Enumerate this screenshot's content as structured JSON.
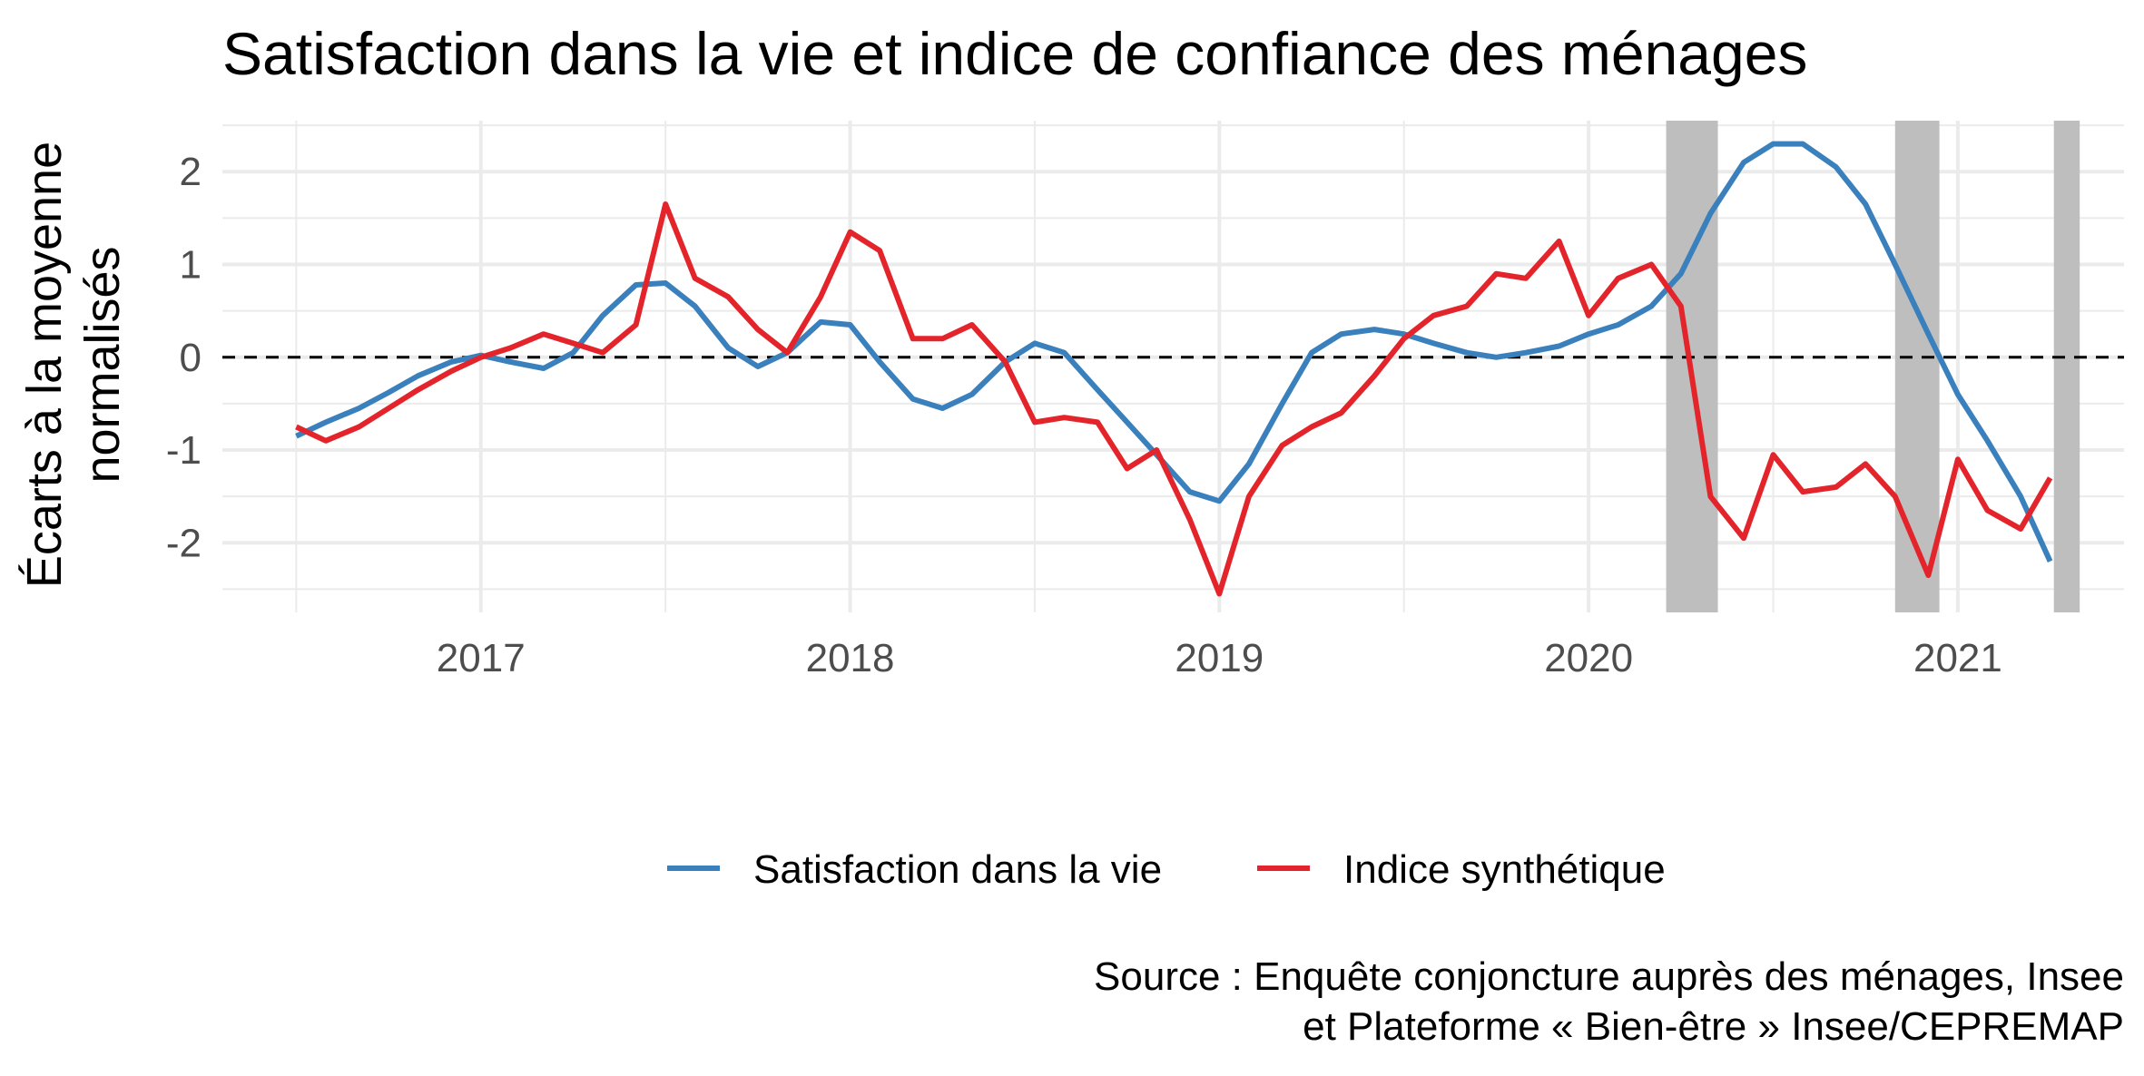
{
  "chart_data": {
    "type": "line",
    "title": "Satisfaction dans la vie et indice de confiance des ménages",
    "ylabel": "Écarts à la moyenne normalisés",
    "ylabel_lines": [
      "Écarts à la moyenne",
      "normalisés"
    ],
    "xlabel": "",
    "x_ticks": [
      "2017",
      "2018",
      "2019",
      "2020",
      "2021"
    ],
    "y_ticks": [
      "2",
      "1",
      "0",
      "-1",
      "-2"
    ],
    "xlim": [
      2016.3,
      2021.45
    ],
    "ylim": [
      -2.75,
      2.55
    ],
    "grid": true,
    "legend_position": "bottom",
    "reference_line": {
      "y": 0,
      "style": "dashed"
    },
    "shaded_periods": [
      [
        2020.21,
        2020.35
      ],
      [
        2020.83,
        2020.95
      ],
      [
        2021.26,
        2021.33
      ]
    ],
    "source_lines": [
      "Source : Enquête conjoncture auprès des ménages, Insee",
      "et Plateforme « Bien-être » Insee/CEPREMAP"
    ],
    "series": [
      {
        "name": "Satisfaction dans la vie",
        "color": "#3a80bd",
        "x": [
          2016.5,
          2016.58,
          2016.67,
          2016.75,
          2016.83,
          2016.92,
          2017.0,
          2017.08,
          2017.17,
          2017.25,
          2017.33,
          2017.42,
          2017.5,
          2017.58,
          2017.67,
          2017.75,
          2017.83,
          2017.92,
          2018.0,
          2018.08,
          2018.17,
          2018.25,
          2018.33,
          2018.42,
          2018.5,
          2018.58,
          2018.67,
          2018.75,
          2018.83,
          2018.92,
          2019.0,
          2019.08,
          2019.17,
          2019.25,
          2019.33,
          2019.42,
          2019.5,
          2019.58,
          2019.67,
          2019.75,
          2019.83,
          2019.92,
          2020.0,
          2020.08,
          2020.17,
          2020.25,
          2020.33,
          2020.42,
          2020.5,
          2020.58,
          2020.67,
          2020.75,
          2020.83,
          2020.92,
          2021.0,
          2021.08,
          2021.17,
          2021.25
        ],
        "values": [
          -0.85,
          -0.7,
          -0.55,
          -0.38,
          -0.2,
          -0.05,
          0.02,
          -0.05,
          -0.12,
          0.05,
          0.45,
          0.78,
          0.8,
          0.55,
          0.1,
          -0.1,
          0.05,
          0.38,
          0.35,
          -0.05,
          -0.45,
          -0.55,
          -0.4,
          -0.05,
          0.15,
          0.05,
          -0.35,
          -0.7,
          -1.05,
          -1.45,
          -1.55,
          -1.15,
          -0.5,
          0.05,
          0.25,
          0.3,
          0.25,
          0.15,
          0.05,
          0.0,
          0.05,
          0.12,
          0.25,
          0.35,
          0.55,
          0.9,
          1.55,
          2.1,
          2.3,
          2.3,
          2.05,
          1.65,
          1.0,
          0.25,
          -0.4,
          -0.9,
          -1.5,
          -2.2
        ]
      },
      {
        "name": "Indice synthétique",
        "color": "#e3242b",
        "x": [
          2016.5,
          2016.58,
          2016.67,
          2016.75,
          2016.83,
          2016.92,
          2017.0,
          2017.08,
          2017.17,
          2017.25,
          2017.33,
          2017.42,
          2017.5,
          2017.58,
          2017.67,
          2017.75,
          2017.83,
          2017.92,
          2018.0,
          2018.08,
          2018.17,
          2018.25,
          2018.33,
          2018.42,
          2018.5,
          2018.58,
          2018.67,
          2018.75,
          2018.83,
          2018.92,
          2019.0,
          2019.08,
          2019.17,
          2019.25,
          2019.33,
          2019.42,
          2019.5,
          2019.58,
          2019.67,
          2019.75,
          2019.83,
          2019.92,
          2020.0,
          2020.08,
          2020.17,
          2020.25,
          2020.33,
          2020.42,
          2020.5,
          2020.58,
          2020.67,
          2020.75,
          2020.83,
          2020.92,
          2021.0,
          2021.08,
          2021.17,
          2021.25
        ],
        "values": [
          -0.75,
          -0.9,
          -0.75,
          -0.55,
          -0.35,
          -0.15,
          0.0,
          0.1,
          0.25,
          0.15,
          0.05,
          0.35,
          1.65,
          0.85,
          0.65,
          0.3,
          0.05,
          0.65,
          1.35,
          1.15,
          0.2,
          0.2,
          0.35,
          -0.05,
          -0.7,
          -0.65,
          -0.7,
          -1.2,
          -1.0,
          -1.75,
          -2.55,
          -1.5,
          -0.95,
          -0.75,
          -0.6,
          -0.2,
          0.2,
          0.45,
          0.55,
          0.9,
          0.85,
          1.25,
          0.45,
          0.85,
          1.0,
          0.55,
          -1.5,
          -1.95,
          -1.05,
          -1.45,
          -1.4,
          -1.15,
          -1.5,
          -2.35,
          -1.1,
          -1.65,
          -1.85,
          -1.3
        ]
      }
    ]
  }
}
